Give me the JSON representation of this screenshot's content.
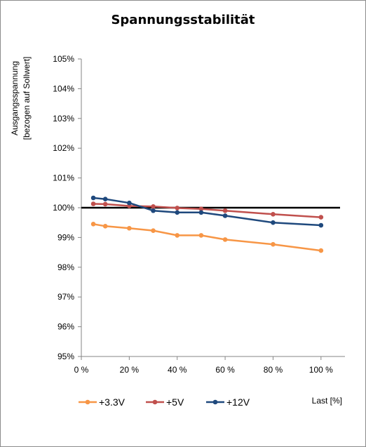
{
  "chart_data": {
    "type": "line",
    "title": "Spannungsstabilität",
    "ylabel_line1": "Ausgangsspannung",
    "ylabel_line2": "[bezogen auf Sollwert]",
    "xlabel": "Last [%]",
    "x": [
      5,
      10,
      20,
      30,
      40,
      50,
      60,
      80,
      100
    ],
    "xlim": [
      0,
      110
    ],
    "ylim": [
      95,
      105
    ],
    "x_ticks": [
      0,
      20,
      40,
      60,
      80,
      100
    ],
    "x_tick_labels": [
      "0 %",
      "20 %",
      "40 %",
      "60 %",
      "80 %",
      "100 %"
    ],
    "y_ticks": [
      95,
      96,
      97,
      98,
      99,
      100,
      101,
      102,
      103,
      104,
      105
    ],
    "y_tick_labels": [
      "95%",
      "96%",
      "97%",
      "98%",
      "99%",
      "100%",
      "101%",
      "102%",
      "103%",
      "104%",
      "105%"
    ],
    "reference_line": {
      "value": 100,
      "color": "#000000"
    },
    "grid": false,
    "legend_position": "bottom",
    "series": [
      {
        "name": "+3.3V",
        "color": "#F79646",
        "values": [
          99.45,
          99.38,
          99.31,
          99.23,
          99.07,
          99.07,
          98.93,
          98.77,
          98.56
        ]
      },
      {
        "name": "+5V",
        "color": "#C0504D",
        "values": [
          100.13,
          100.12,
          100.06,
          100.04,
          99.99,
          99.96,
          99.9,
          99.78,
          99.68
        ]
      },
      {
        "name": "+12V",
        "color": "#1F497D",
        "values": [
          100.33,
          100.29,
          100.16,
          99.9,
          99.84,
          99.84,
          99.73,
          99.5,
          99.41
        ]
      }
    ]
  }
}
